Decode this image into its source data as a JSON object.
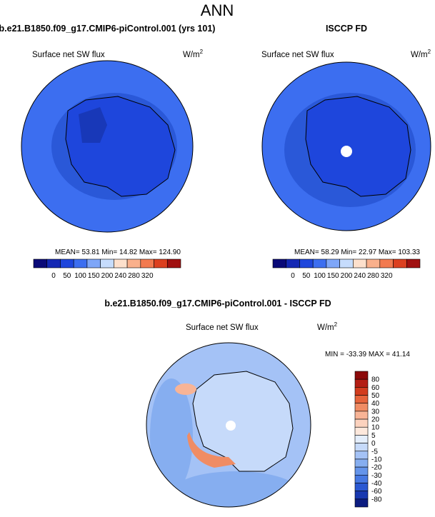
{
  "title": "ANN",
  "panels": [
    {
      "title": "b.e21.B1850.f09_g17.CMIP6-piControl.001 (yrs 101)",
      "variable": "Surface net SW flux",
      "units": "W/m",
      "units_sup": "2",
      "stats": "MEAN= 53.81  Min= 14.82  Max= 124.90",
      "colorbar": {
        "labels": [
          "0",
          "50",
          "100",
          "150",
          "200",
          "240",
          "280",
          "320"
        ],
        "colors": [
          "#0a0a78",
          "#1428b4",
          "#1e46dc",
          "#3c6ef0",
          "#7ea6f8",
          "#c6dcfc",
          "#fde0cc",
          "#f9b08c",
          "#f27a50",
          "#dc4020",
          "#a01010"
        ]
      }
    },
    {
      "title": "ISCCP FD",
      "variable": "Surface net SW flux",
      "units": "W/m",
      "units_sup": "2",
      "stats": "MEAN= 58.29  Min= 22.97  Max= 103.33",
      "colorbar": {
        "labels": [
          "0",
          "50",
          "100",
          "150",
          "200",
          "240",
          "280",
          "320"
        ],
        "colors": [
          "#0a0a78",
          "#1428b4",
          "#1e46dc",
          "#3c6ef0",
          "#7ea6f8",
          "#c6dcfc",
          "#fde0cc",
          "#f9b08c",
          "#f27a50",
          "#dc4020",
          "#a01010"
        ]
      }
    },
    {
      "title": "b.e21.B1850.f09_g17.CMIP6-piControl.001 - ISCCP FD",
      "variable": "Surface net SW flux",
      "units": "W/m",
      "units_sup": "2",
      "stats": "MIN = -33.39 MAX =  41.14",
      "colorbar": {
        "labels": [
          "80",
          "60",
          "50",
          "40",
          "30",
          "20",
          "10",
          "5",
          "0",
          "-5",
          "-10",
          "-20",
          "-30",
          "-40",
          "-60",
          "-80"
        ],
        "colors": [
          "#8c0a0a",
          "#b41e14",
          "#d23c1e",
          "#e6643c",
          "#f08c64",
          "#f8b496",
          "#fcd2be",
          "#fde8dc",
          "#e4eefc",
          "#c6dafa",
          "#a4c2f6",
          "#86aef0",
          "#6494ea",
          "#4678e2",
          "#2a58d2",
          "#1838b0",
          "#0c1c80"
        ]
      }
    }
  ]
}
